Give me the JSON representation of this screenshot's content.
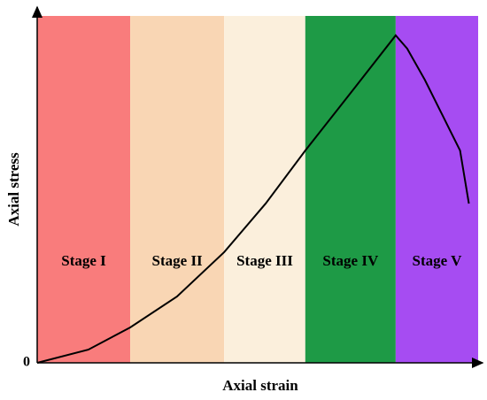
{
  "chart_data": {
    "type": "line",
    "xlabel": "Axial strain",
    "ylabel": "Axial stress",
    "xlim": [
      0,
      100
    ],
    "ylim": [
      0,
      100
    ],
    "yticks": [
      0
    ],
    "stages": [
      {
        "label": "Stage I",
        "start": 0,
        "end": 21.1,
        "color": "#f97c7c"
      },
      {
        "label": "Stage II",
        "start": 21.1,
        "end": 42.4,
        "color": "#f9d6b4"
      },
      {
        "label": "Stage III",
        "start": 42.4,
        "end": 60.8,
        "color": "#fbefdc"
      },
      {
        "label": "Stage IV",
        "start": 60.8,
        "end": 81.3,
        "color": "#1e9a46"
      },
      {
        "label": "Stage V",
        "start": 81.3,
        "end": 100,
        "color": "#a64cf2"
      }
    ],
    "x": [
      0,
      11.6,
      21.1,
      31.7,
      42.4,
      51.8,
      60.8,
      71.9,
      81.3,
      83.9,
      87.9,
      91.9,
      95.9,
      97.9
    ],
    "series": [
      {
        "color": "#000000",
        "values": [
          0,
          3.8,
          10.2,
          19.1,
          31.9,
          45.9,
          61.2,
          79.1,
          94.4,
          90.6,
          81.6,
          71.4,
          61.2,
          45.9
        ]
      }
    ]
  }
}
